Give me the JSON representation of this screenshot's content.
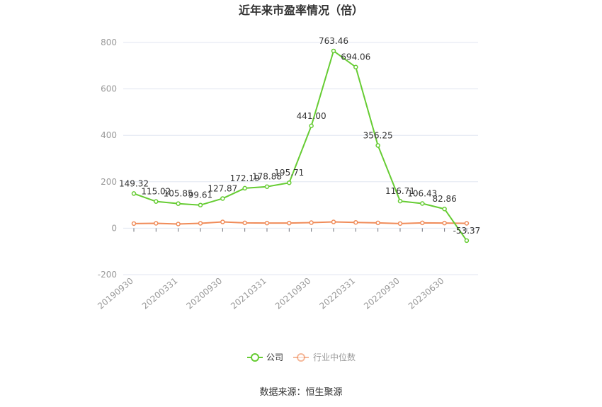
{
  "chart_data": {
    "type": "line",
    "title": "近年来市盈率情况（倍）",
    "source": "数据来源：恒生聚源",
    "ylim": [
      -200,
      800
    ],
    "yticks": [
      "800",
      "600",
      "400",
      "200",
      "0",
      "-200"
    ],
    "ytick_values": [
      800,
      600,
      400,
      200,
      0,
      -200
    ],
    "x_tick_labels": [
      "20190930",
      "20200331",
      "20200930",
      "20210331",
      "20210930",
      "20220331",
      "20220930",
      "20230630"
    ],
    "grid": true,
    "legend_position": "bottom",
    "series": [
      {
        "name": "公司",
        "color": "#66cc33",
        "values": [
          149.32,
          115.02,
          105.85,
          99.61,
          127.87,
          172.19,
          178.88,
          195.71,
          441.0,
          763.46,
          694.06,
          356.25,
          116.71,
          106.43,
          82.86,
          -53.37
        ],
        "labels": [
          "149.32",
          "115.02",
          "105.85",
          "99.61",
          "127.87",
          "172.19",
          "178.88",
          "195.71",
          "441.00",
          "763.46",
          "694.06",
          "356.25",
          "116.71",
          "106.43",
          "82.86",
          "-53.37"
        ]
      },
      {
        "name": "行业中位数",
        "color": "#f08c5a",
        "values": [
          20,
          21,
          18,
          21,
          27,
          23,
          22,
          22,
          24,
          27,
          25,
          23,
          20,
          23,
          22,
          21
        ]
      }
    ]
  }
}
